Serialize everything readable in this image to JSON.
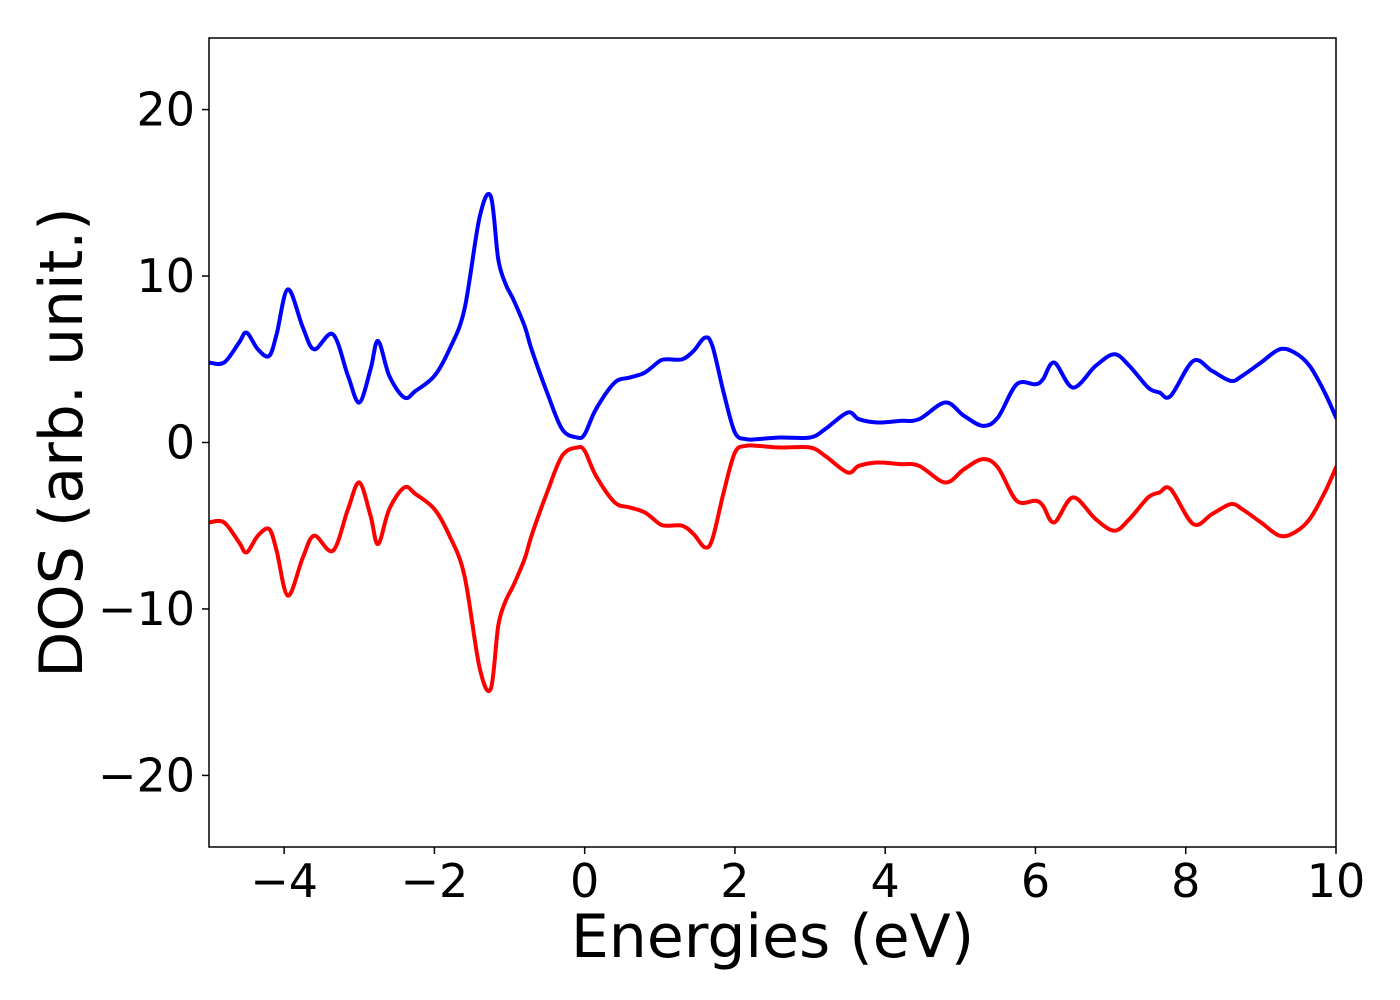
{
  "chart_data": {
    "type": "line",
    "title": "",
    "xlabel": "Energies (eV)",
    "ylabel": "DOS (arb. unit.)",
    "xlim": [
      -5,
      10
    ],
    "ylim": [
      -24.3,
      24.3
    ],
    "x_ticks": [
      -4,
      -2,
      0,
      2,
      4,
      6,
      8,
      10
    ],
    "y_ticks": [
      -20,
      -10,
      0,
      10,
      20
    ],
    "x_tick_labels": [
      "−4",
      "−2",
      "0",
      "2",
      "4",
      "6",
      "8",
      "10"
    ],
    "y_tick_labels": [
      "−20",
      "−10",
      "0",
      "10",
      "20"
    ],
    "grid": false,
    "legend": "none",
    "series": [
      {
        "color": "#0000ff",
        "x": [
          -5.0,
          -4.8,
          -4.6,
          -4.5,
          -4.35,
          -4.2,
          -4.1,
          -3.95,
          -3.75,
          -3.6,
          -3.35,
          -3.15,
          -3.0,
          -2.85,
          -2.75,
          -2.6,
          -2.4,
          -2.25,
          -2.0,
          -1.8,
          -1.6,
          -1.4,
          -1.25,
          -1.15,
          -1.05,
          -0.95,
          -0.8,
          -0.7,
          -0.5,
          -0.3,
          -0.1,
          0.0,
          0.15,
          0.4,
          0.6,
          0.8,
          1.0,
          1.1,
          1.3,
          1.45,
          1.6,
          1.7,
          1.85,
          2.0,
          2.15,
          2.3,
          2.6,
          3.0,
          3.2,
          3.5,
          3.65,
          3.9,
          4.2,
          4.45,
          4.8,
          5.05,
          5.3,
          5.5,
          5.75,
          6.0,
          6.1,
          6.25,
          6.5,
          6.8,
          7.05,
          7.25,
          7.5,
          7.65,
          7.8,
          8.1,
          8.35,
          8.6,
          8.75,
          9.0,
          9.25,
          9.45,
          9.65,
          9.85,
          10.0
        ],
        "y": [
          4.8,
          4.8,
          6.0,
          6.6,
          5.6,
          5.2,
          6.5,
          9.2,
          6.9,
          5.6,
          6.5,
          4.0,
          2.4,
          4.4,
          6.1,
          4.0,
          2.7,
          3.1,
          4.0,
          5.6,
          8.0,
          13.5,
          14.8,
          11.0,
          9.5,
          8.6,
          7.0,
          5.5,
          3.0,
          0.8,
          0.3,
          0.5,
          2.0,
          3.6,
          3.9,
          4.2,
          4.9,
          5.0,
          5.0,
          5.5,
          6.3,
          5.8,
          3.0,
          0.6,
          0.2,
          0.2,
          0.3,
          0.3,
          0.8,
          1.8,
          1.4,
          1.2,
          1.3,
          1.4,
          2.4,
          1.6,
          1.0,
          1.5,
          3.5,
          3.5,
          3.8,
          4.8,
          3.3,
          4.6,
          5.3,
          4.6,
          3.3,
          3.0,
          2.8,
          4.9,
          4.3,
          3.7,
          4.0,
          4.8,
          5.6,
          5.4,
          4.6,
          3.0,
          1.5
        ]
      },
      {
        "color": "#ff0000",
        "x": [
          -5.0,
          -4.8,
          -4.6,
          -4.5,
          -4.35,
          -4.2,
          -4.1,
          -3.95,
          -3.75,
          -3.6,
          -3.35,
          -3.15,
          -3.0,
          -2.85,
          -2.75,
          -2.6,
          -2.4,
          -2.25,
          -2.0,
          -1.8,
          -1.6,
          -1.4,
          -1.25,
          -1.15,
          -1.05,
          -0.95,
          -0.8,
          -0.7,
          -0.5,
          -0.3,
          -0.1,
          0.0,
          0.15,
          0.4,
          0.6,
          0.8,
          1.0,
          1.1,
          1.3,
          1.45,
          1.6,
          1.7,
          1.85,
          2.0,
          2.15,
          2.3,
          2.6,
          3.0,
          3.2,
          3.5,
          3.65,
          3.9,
          4.2,
          4.45,
          4.8,
          5.05,
          5.3,
          5.5,
          5.75,
          6.0,
          6.1,
          6.25,
          6.5,
          6.8,
          7.05,
          7.25,
          7.5,
          7.65,
          7.8,
          8.1,
          8.35,
          8.6,
          8.75,
          9.0,
          9.25,
          9.45,
          9.65,
          9.85,
          10.0
        ],
        "y": [
          -4.8,
          -4.8,
          -6.0,
          -6.6,
          -5.6,
          -5.2,
          -6.5,
          -9.2,
          -6.9,
          -5.6,
          -6.5,
          -4.0,
          -2.4,
          -4.4,
          -6.1,
          -4.0,
          -2.7,
          -3.1,
          -4.0,
          -5.6,
          -8.0,
          -13.5,
          -14.8,
          -11.0,
          -9.5,
          -8.6,
          -7.0,
          -5.5,
          -3.0,
          -0.8,
          -0.3,
          -0.5,
          -2.0,
          -3.6,
          -3.9,
          -4.2,
          -4.9,
          -5.0,
          -5.0,
          -5.5,
          -6.3,
          -5.8,
          -3.0,
          -0.6,
          -0.2,
          -0.2,
          -0.3,
          -0.3,
          -0.8,
          -1.8,
          -1.4,
          -1.2,
          -1.3,
          -1.4,
          -2.4,
          -1.6,
          -1.0,
          -1.5,
          -3.5,
          -3.5,
          -3.8,
          -4.8,
          -3.3,
          -4.6,
          -5.3,
          -4.6,
          -3.3,
          -3.0,
          -2.8,
          -4.9,
          -4.3,
          -3.7,
          -4.0,
          -4.8,
          -5.6,
          -5.4,
          -4.6,
          -3.0,
          -1.5
        ]
      }
    ]
  }
}
